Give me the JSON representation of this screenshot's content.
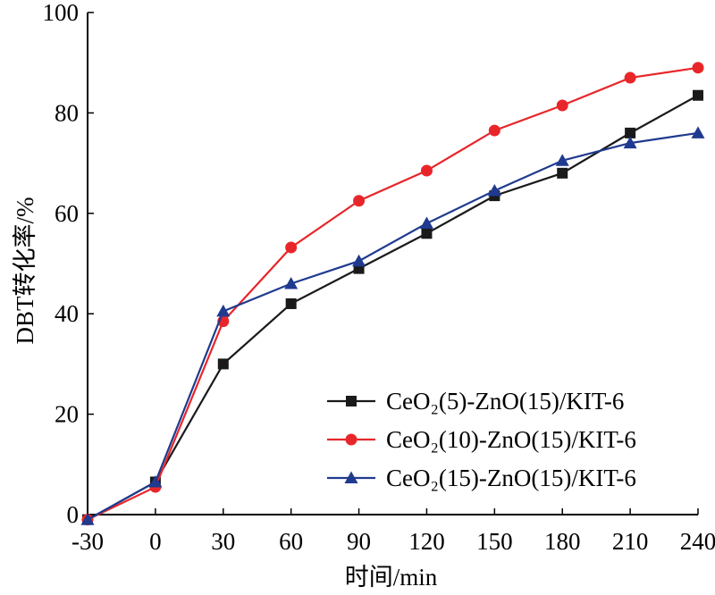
{
  "chart_data": {
    "type": "line",
    "xlabel": "时间/min",
    "ylabel": "DBT转化率/%",
    "x": [
      -30,
      0,
      30,
      60,
      90,
      120,
      150,
      180,
      210,
      240
    ],
    "x_tick_labels": [
      "-30",
      "0",
      "30",
      "60",
      "90",
      "120",
      "150",
      "180",
      "210",
      "240"
    ],
    "xlim": [
      -30,
      240
    ],
    "ylim": [
      0,
      100
    ],
    "y_ticks": [
      0,
      20,
      40,
      60,
      80,
      100
    ],
    "y_tick_labels": [
      "0",
      "20",
      "40",
      "60",
      "80",
      "100"
    ],
    "grid": false,
    "legend_position": "bottom-right",
    "series": [
      {
        "name": "CeO₂(5)-ZnO(15)/KIT-6",
        "color": "#1a1a1a",
        "marker": "square",
        "values": [
          -1,
          6.5,
          30,
          42,
          49,
          56,
          63.5,
          68,
          76,
          83.5
        ]
      },
      {
        "name": "CeO₂(10)-ZnO(15)/KIT-6",
        "color": "#e8262a",
        "marker": "circle",
        "values": [
          -1,
          5.5,
          38.5,
          53.2,
          62.5,
          68.5,
          76.5,
          81.5,
          87,
          89
        ]
      },
      {
        "name": "CeO₂(15)-ZnO(15)/KIT-6",
        "color": "#1f3a8f",
        "marker": "triangle",
        "values": [
          -1,
          6.5,
          40.5,
          46,
          50.5,
          58,
          64.5,
          70.5,
          74,
          76
        ]
      }
    ]
  }
}
